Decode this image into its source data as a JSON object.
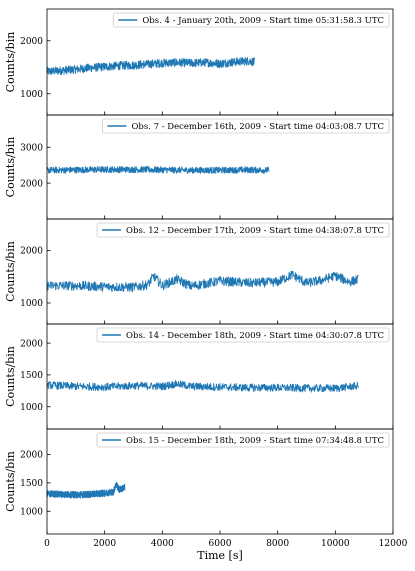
{
  "chart_data": [
    {
      "type": "line",
      "series": [
        {
          "name": "Obs. 4 - January 20th, 2009 - Start time 05:31:58.3 UTC"
        }
      ],
      "x": [
        0,
        500,
        1000,
        1500,
        2000,
        2500,
        3000,
        3500,
        4000,
        4500,
        5000,
        5500,
        6000,
        6500,
        7000,
        7200
      ],
      "y": [
        1420,
        1440,
        1460,
        1490,
        1510,
        1530,
        1540,
        1560,
        1580,
        1590,
        1580,
        1590,
        1570,
        1600,
        1620,
        1600
      ],
      "noise": 80,
      "ylabel": "Counts/bin",
      "yticks": [
        1000,
        2000
      ],
      "ylim": [
        600,
        2600
      ],
      "legend": "top-right",
      "color": "#1f77b4"
    },
    {
      "type": "line",
      "series": [
        {
          "name": "Obs. 7 - December 16th, 2009 - Start time 04:03:08.7 UTC"
        }
      ],
      "x": [
        0,
        1000,
        2000,
        3000,
        4000,
        5000,
        6000,
        7000,
        7700
      ],
      "y": [
        2360,
        2370,
        2380,
        2380,
        2370,
        2360,
        2360,
        2370,
        2360
      ],
      "noise": 90,
      "ylabel": "Counts/bin",
      "yticks": [
        2000,
        3000
      ],
      "ylim": [
        1000,
        3900
      ],
      "legend": "top-right",
      "color": "#1f77b4"
    },
    {
      "type": "line",
      "series": [
        {
          "name": "Obs. 12 - December 17th, 2009 - Start time 04:38:07.8 UTC"
        }
      ],
      "x": [
        0,
        1000,
        2000,
        3000,
        3500,
        3700,
        4000,
        4500,
        5000,
        6000,
        7000,
        8000,
        8500,
        9000,
        9500,
        10000,
        10500,
        10800
      ],
      "y": [
        1330,
        1330,
        1310,
        1300,
        1350,
        1510,
        1330,
        1450,
        1320,
        1420,
        1380,
        1400,
        1540,
        1380,
        1430,
        1520,
        1400,
        1450
      ],
      "noise": 90,
      "ylabel": "Counts/bin",
      "yticks": [
        1000,
        2000
      ],
      "ylim": [
        600,
        2600
      ],
      "legend": "top-right",
      "color": "#1f77b4"
    },
    {
      "type": "line",
      "series": [
        {
          "name": "Obs. 14 - December 18th, 2009 - Start time 04:30:07.8 UTC"
        }
      ],
      "x": [
        0,
        1000,
        2000,
        3000,
        4000,
        4500,
        5000,
        6000,
        7000,
        8000,
        9000,
        10000,
        10800
      ],
      "y": [
        1340,
        1320,
        1310,
        1330,
        1320,
        1360,
        1320,
        1310,
        1300,
        1300,
        1290,
        1290,
        1330
      ],
      "noise": 60,
      "ylabel": "Counts/bin",
      "yticks": [
        1000,
        1500,
        2000
      ],
      "ylim": [
        650,
        2300
      ],
      "legend": "top-right",
      "color": "#1f77b4"
    },
    {
      "type": "line",
      "series": [
        {
          "name": "Obs. 15 - December 18th, 2009 - Start time 07:34:48.8 UTC"
        }
      ],
      "x": [
        0,
        500,
        1000,
        1500,
        2000,
        2300,
        2400,
        2500,
        2700
      ],
      "y": [
        1310,
        1300,
        1290,
        1300,
        1320,
        1340,
        1480,
        1380,
        1420
      ],
      "noise": 60,
      "ylabel": "Counts/bin",
      "yticks": [
        1000,
        1500,
        2000
      ],
      "ylim": [
        600,
        2450
      ],
      "legend": "top-right",
      "color": "#1f77b4"
    }
  ],
  "xaxis": {
    "label": "Time [s]",
    "ticks": [
      0,
      2000,
      4000,
      6000,
      8000,
      10000,
      12000
    ],
    "xlim": [
      0,
      12000
    ]
  }
}
